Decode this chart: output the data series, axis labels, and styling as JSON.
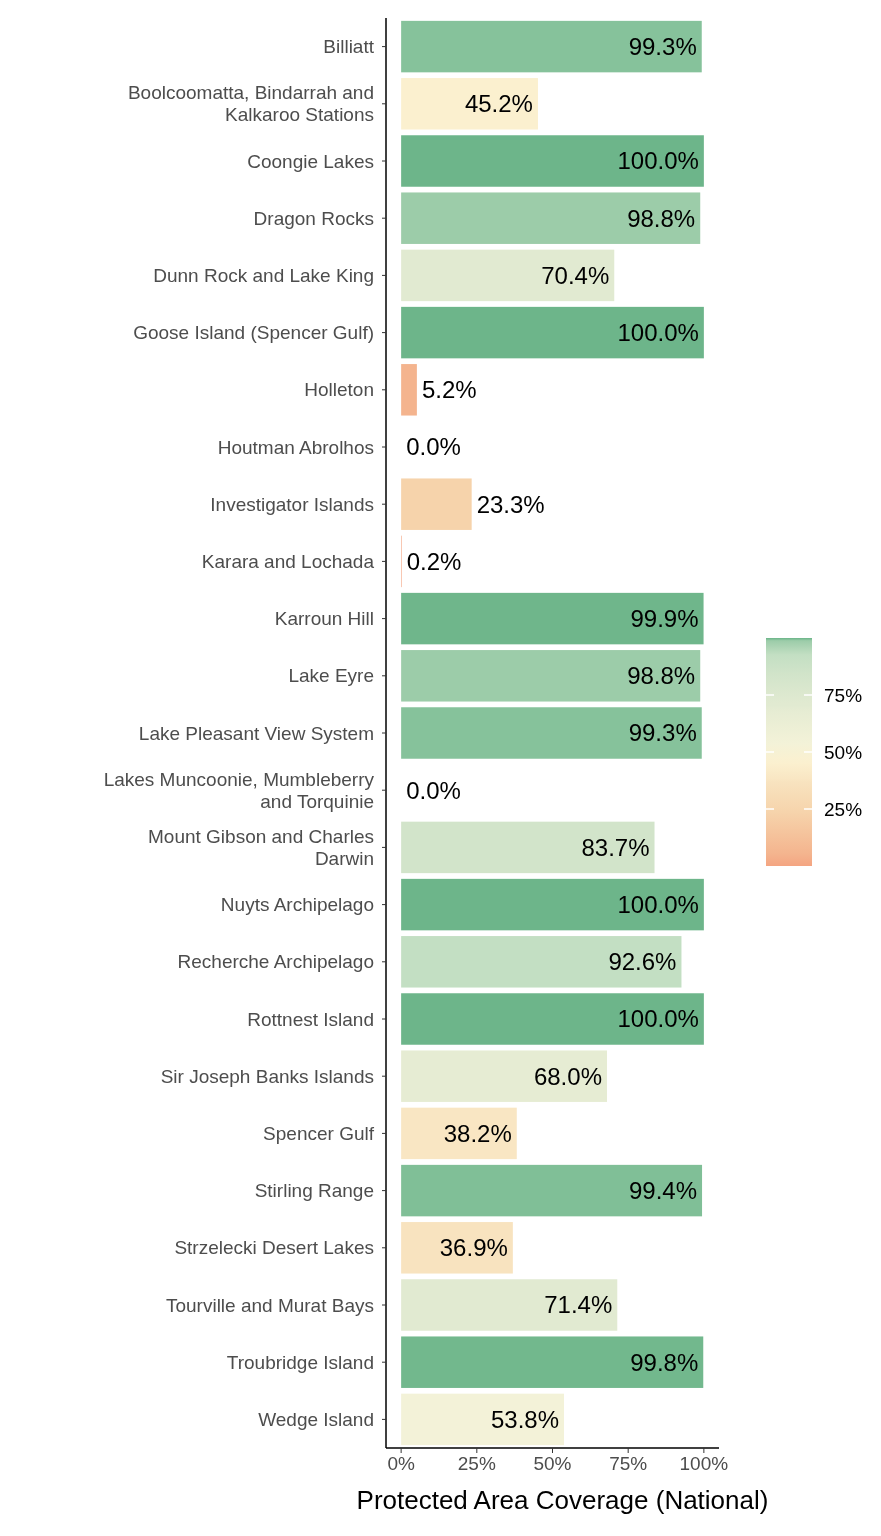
{
  "chart_data": {
    "type": "bar",
    "orientation": "horizontal",
    "xlabel": "Protected Area Coverage (National)",
    "categories": [
      "Billiatt",
      "Boolcoomatta, Bindarrah and Kalkaroo Stations",
      "Coongie Lakes",
      "Dragon Rocks",
      "Dunn Rock and Lake King",
      "Goose Island (Spencer Gulf)",
      "Holleton",
      "Houtman Abrolhos",
      "Investigator Islands",
      "Karara and Lochada",
      "Karroun Hill",
      "Lake Eyre",
      "Lake Pleasant View System",
      "Lakes Muncoonie, Mumbleberry and Torquinie",
      "Mount Gibson and Charles Darwin",
      "Nuyts Archipelago",
      "Recherche Archipelago",
      "Rottnest Island",
      "Sir Joseph Banks Islands",
      "Spencer Gulf",
      "Stirling Range",
      "Strzelecki Desert Lakes",
      "Tourville and Murat Bays",
      "Troubridge Island",
      "Wedge Island"
    ],
    "values": [
      99.3,
      45.2,
      100.0,
      98.8,
      70.4,
      100.0,
      5.2,
      0.0,
      23.3,
      0.2,
      99.9,
      98.8,
      99.3,
      0.0,
      83.7,
      100.0,
      92.6,
      100.0,
      68.0,
      38.2,
      99.4,
      36.9,
      71.4,
      99.8,
      53.8
    ],
    "value_labels": [
      "99.3%",
      "45.2%",
      "100.0%",
      "98.8%",
      "70.4%",
      "100.0%",
      "5.2%",
      "0.0%",
      "23.3%",
      "0.2%",
      "99.9%",
      "98.8%",
      "99.3%",
      "0.0%",
      "83.7%",
      "100.0%",
      "92.6%",
      "100.0%",
      "68.0%",
      "38.2%",
      "99.4%",
      "36.9%",
      "71.4%",
      "99.8%",
      "53.8%"
    ],
    "colors": [
      "#86c29b",
      "#fbf0cf",
      "#6db58a",
      "#9ccca9",
      "#e1ead1",
      "#6db58a",
      "#f4b48e",
      "#f4a582",
      "#f6d3ab",
      "#f4a582",
      "#6fb68b",
      "#9ccca9",
      "#86c29b",
      "#f4a582",
      "#d2e4ca",
      "#6db58a",
      "#c3dfc3",
      "#6db58a",
      "#e6ecd3",
      "#f9e6c3",
      "#80bf97",
      "#f8e3bf",
      "#e1ead1",
      "#72b88d",
      "#f3f2d8"
    ],
    "xlim": [
      -5,
      105
    ],
    "xticks": [
      {
        "value": 0,
        "label": "0%"
      },
      {
        "value": 25,
        "label": "25%"
      },
      {
        "value": 50,
        "label": "50%"
      },
      {
        "value": 75,
        "label": "75%"
      },
      {
        "value": 100,
        "label": "100%"
      }
    ],
    "clim": [
      0,
      100
    ],
    "cticks": [
      {
        "value": 25,
        "label": "25%"
      },
      {
        "value": 50,
        "label": "50%"
      },
      {
        "value": 75,
        "label": "75%"
      }
    ],
    "grid": false
  }
}
